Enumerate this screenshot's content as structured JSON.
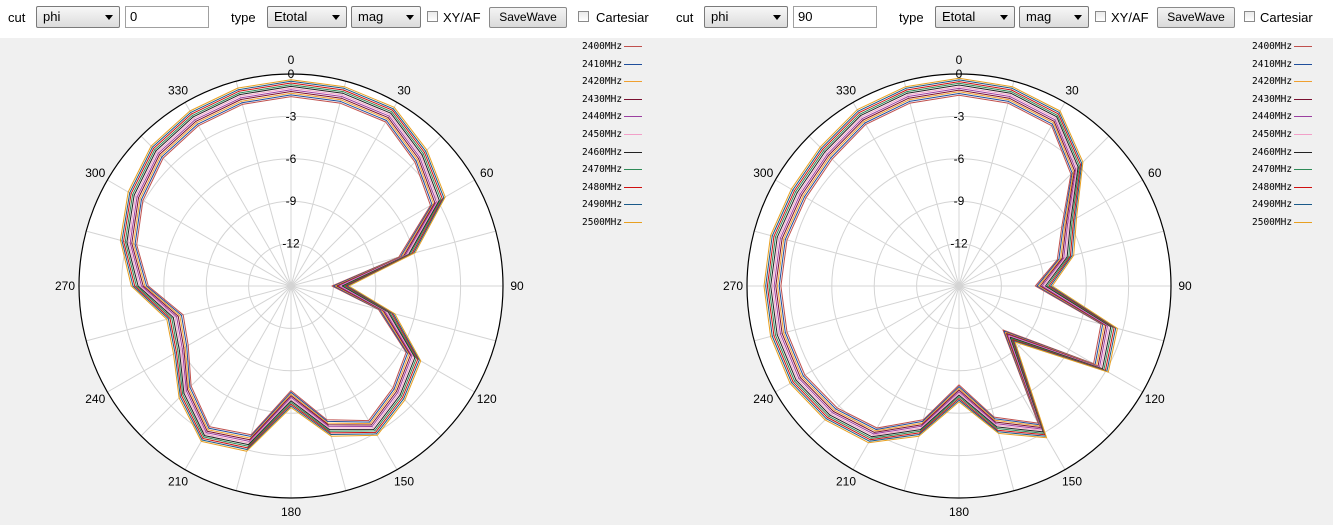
{
  "panels": [
    {
      "cut_label": "cut",
      "cut_value": "phi",
      "cut_angle": "0",
      "type_label": "type",
      "type_value": "Etotal",
      "mag_value": "mag",
      "xyaf_label": "XY/AF",
      "savewave_label": "SaveWave",
      "cartesian_label": "Cartesiar",
      "angle_labels": [
        "0",
        "30",
        "60",
        "90",
        "120",
        "150",
        "180",
        "210",
        "240",
        "270",
        "300",
        "330"
      ],
      "radial_labels": [
        "0",
        "-3",
        "-6",
        "-9",
        "-12"
      ],
      "legend": [
        "2400MHz",
        "2410MHz",
        "2420MHz",
        "2430MHz",
        "2440MHz",
        "2450MHz",
        "2460MHz",
        "2470MHz",
        "2480MHz",
        "2490MHz",
        "2500MHz"
      ]
    },
    {
      "cut_label": "cut",
      "cut_value": "phi",
      "cut_angle": "90",
      "type_label": "type",
      "type_value": "Etotal",
      "mag_value": "mag",
      "xyaf_label": "XY/AF",
      "savewave_label": "SaveWave",
      "cartesian_label": "Cartesiar",
      "angle_labels": [
        "0",
        "30",
        "60",
        "90",
        "120",
        "150",
        "180",
        "210",
        "240",
        "270",
        "300",
        "330"
      ],
      "radial_labels": [
        "0",
        "-3",
        "-6",
        "-9",
        "-12"
      ],
      "legend": [
        "2400MHz",
        "2410MHz",
        "2420MHz",
        "2430MHz",
        "2440MHz",
        "2450MHz",
        "2460MHz",
        "2470MHz",
        "2480MHz",
        "2490MHz",
        "2500MHz"
      ]
    }
  ],
  "series_colors": [
    "#c0504d",
    "#1f4e9c",
    "#f0a030",
    "#7a1030",
    "#9b3fa0",
    "#f2a0c8",
    "#222222",
    "#2e8b57",
    "#d01010",
    "#1a5a8a",
    "#e8a020"
  ],
  "chart_data": [
    {
      "type": "polar-line",
      "cut": "phi = 0",
      "angle_unit": "deg",
      "r_unit": "dB",
      "r_range": [
        -15,
        0
      ],
      "angles": [
        0,
        15,
        30,
        45,
        60,
        75,
        90,
        105,
        120,
        135,
        150,
        165,
        180,
        195,
        210,
        225,
        240,
        255,
        270,
        285,
        300,
        315,
        330,
        345
      ],
      "series": [
        {
          "name": "2400MHz",
          "values": [
            -1.0,
            -1.0,
            -1.0,
            -2.0,
            -3.0,
            -6.5,
            -11.5,
            -8.0,
            -5.0,
            -4.2,
            -3.4,
            -4.6,
            -7.0,
            -3.5,
            -2.9,
            -4.4,
            -6.0,
            -6.5,
            -4.3,
            -3.1,
            -2.3,
            -1.6,
            -1.3,
            -1.1
          ]
        },
        {
          "name": "2410MHz",
          "values": [
            -1.0,
            -1.0,
            -1.0,
            -2.0,
            -3.0,
            -6.5,
            -11.5,
            -8.0,
            -5.0,
            -4.2,
            -3.4,
            -4.6,
            -7.0,
            -3.5,
            -2.9,
            -4.4,
            -6.0,
            -6.5,
            -4.3,
            -3.1,
            -2.3,
            -1.6,
            -1.3,
            -1.1
          ]
        },
        {
          "name": "2420MHz",
          "values": [
            -1.0,
            -1.0,
            -1.0,
            -2.0,
            -3.0,
            -6.5,
            -11.5,
            -8.0,
            -5.0,
            -4.2,
            -3.4,
            -4.6,
            -7.0,
            -3.5,
            -2.9,
            -4.4,
            -6.0,
            -6.5,
            -4.3,
            -3.1,
            -2.3,
            -1.6,
            -1.3,
            -1.1
          ]
        },
        {
          "name": "2430MHz",
          "values": [
            -1.0,
            -1.0,
            -1.0,
            -2.0,
            -3.0,
            -6.5,
            -11.5,
            -8.0,
            -5.0,
            -4.2,
            -3.4,
            -4.6,
            -7.0,
            -3.5,
            -2.9,
            -4.4,
            -6.0,
            -6.5,
            -4.3,
            -3.1,
            -2.3,
            -1.6,
            -1.3,
            -1.1
          ]
        },
        {
          "name": "2440MHz",
          "values": [
            -1.0,
            -1.0,
            -1.0,
            -2.0,
            -3.0,
            -6.5,
            -11.5,
            -8.0,
            -5.0,
            -4.2,
            -3.4,
            -4.6,
            -7.0,
            -3.5,
            -2.9,
            -4.4,
            -6.0,
            -6.5,
            -4.3,
            -3.1,
            -2.3,
            -1.6,
            -1.3,
            -1.1
          ]
        },
        {
          "name": "2450MHz",
          "values": [
            -1.0,
            -1.0,
            -1.0,
            -2.0,
            -3.0,
            -6.5,
            -11.5,
            -8.0,
            -5.0,
            -4.2,
            -3.4,
            -4.6,
            -7.0,
            -3.5,
            -2.9,
            -4.4,
            -6.0,
            -6.5,
            -4.3,
            -3.1,
            -2.3,
            -1.6,
            -1.3,
            -1.1
          ]
        },
        {
          "name": "2460MHz",
          "values": [
            -1.0,
            -1.0,
            -1.0,
            -2.0,
            -3.0,
            -6.5,
            -11.5,
            -8.0,
            -5.0,
            -4.2,
            -3.4,
            -4.6,
            -7.0,
            -3.5,
            -2.9,
            -4.4,
            -6.0,
            -6.5,
            -4.3,
            -3.1,
            -2.3,
            -1.6,
            -1.3,
            -1.1
          ]
        },
        {
          "name": "2470MHz",
          "values": [
            -1.0,
            -1.0,
            -1.0,
            -2.0,
            -3.0,
            -6.5,
            -11.5,
            -8.0,
            -5.0,
            -4.2,
            -3.4,
            -4.6,
            -7.0,
            -3.5,
            -2.9,
            -4.4,
            -6.0,
            -6.5,
            -4.3,
            -3.1,
            -2.3,
            -1.6,
            -1.3,
            -1.1
          ]
        },
        {
          "name": "2480MHz",
          "values": [
            -1.0,
            -1.0,
            -1.0,
            -2.0,
            -3.0,
            -6.5,
            -11.5,
            -8.0,
            -5.0,
            -4.2,
            -3.4,
            -4.6,
            -7.0,
            -3.5,
            -2.9,
            -4.4,
            -6.0,
            -6.5,
            -4.3,
            -3.1,
            -2.3,
            -1.6,
            -1.3,
            -1.1
          ]
        },
        {
          "name": "2490MHz",
          "values": [
            -1.0,
            -1.0,
            -1.0,
            -2.0,
            -3.0,
            -6.5,
            -11.5,
            -8.0,
            -5.0,
            -4.2,
            -3.4,
            -4.6,
            -7.0,
            -3.5,
            -2.9,
            -4.4,
            -6.0,
            -6.5,
            -4.3,
            -3.1,
            -2.3,
            -1.6,
            -1.3,
            -1.1
          ]
        },
        {
          "name": "2500MHz",
          "values": [
            -1.0,
            -1.0,
            -1.0,
            -2.0,
            -3.0,
            -6.5,
            -11.5,
            -8.0,
            -5.0,
            -4.2,
            -3.4,
            -4.6,
            -7.0,
            -3.5,
            -2.9,
            -4.4,
            -6.0,
            -6.5,
            -4.3,
            -3.1,
            -2.3,
            -1.6,
            -1.3,
            -1.1
          ]
        }
      ]
    },
    {
      "type": "polar-line",
      "cut": "phi = 90",
      "angle_unit": "deg",
      "r_unit": "dB",
      "r_range": [
        -15,
        0
      ],
      "angles": [
        0,
        15,
        30,
        45,
        60,
        75,
        90,
        105,
        120,
        135,
        150,
        165,
        180,
        195,
        210,
        225,
        240,
        255,
        270,
        285,
        300,
        315,
        330,
        345
      ],
      "series": [
        {
          "name": "2400MHz",
          "values": [
            -0.9,
            -1.0,
            -1.3,
            -3.2,
            -6.0,
            -7.2,
            -9.0,
            -4.0,
            -3.4,
            -10.0,
            -3.2,
            -4.8,
            -7.4,
            -4.6,
            -2.8,
            -2.2,
            -1.8,
            -1.8,
            -1.8,
            -1.8,
            -1.9,
            -1.7,
            -1.2,
            -1.0
          ]
        },
        {
          "name": "2410MHz",
          "values": [
            -0.9,
            -1.0,
            -1.3,
            -3.2,
            -6.0,
            -7.2,
            -9.0,
            -4.0,
            -3.4,
            -10.0,
            -3.2,
            -4.8,
            -7.4,
            -4.6,
            -2.8,
            -2.2,
            -1.8,
            -1.8,
            -1.8,
            -1.8,
            -1.9,
            -1.7,
            -1.2,
            -1.0
          ]
        },
        {
          "name": "2420MHz",
          "values": [
            -0.9,
            -1.0,
            -1.3,
            -3.2,
            -6.0,
            -7.2,
            -9.0,
            -4.0,
            -3.4,
            -10.0,
            -3.2,
            -4.8,
            -7.4,
            -4.6,
            -2.8,
            -2.2,
            -1.8,
            -1.8,
            -1.8,
            -1.8,
            -1.9,
            -1.7,
            -1.2,
            -1.0
          ]
        },
        {
          "name": "2430MHz",
          "values": [
            -0.9,
            -1.0,
            -1.3,
            -3.2,
            -6.0,
            -7.2,
            -9.0,
            -4.0,
            -3.4,
            -10.0,
            -3.2,
            -4.8,
            -7.4,
            -4.6,
            -2.8,
            -2.2,
            -1.8,
            -1.8,
            -1.8,
            -1.8,
            -1.9,
            -1.7,
            -1.2,
            -1.0
          ]
        },
        {
          "name": "2440MHz",
          "values": [
            -0.9,
            -1.0,
            -1.3,
            -3.2,
            -6.0,
            -7.2,
            -9.0,
            -4.0,
            -3.4,
            -10.0,
            -3.2,
            -4.8,
            -7.4,
            -4.6,
            -2.8,
            -2.2,
            -1.8,
            -1.8,
            -1.8,
            -1.8,
            -1.9,
            -1.7,
            -1.2,
            -1.0
          ]
        },
        {
          "name": "2450MHz",
          "values": [
            -0.9,
            -1.0,
            -1.3,
            -3.2,
            -6.0,
            -7.2,
            -9.0,
            -4.0,
            -3.4,
            -10.0,
            -3.2,
            -4.8,
            -7.4,
            -4.6,
            -2.8,
            -2.2,
            -1.8,
            -1.8,
            -1.8,
            -1.8,
            -1.9,
            -1.7,
            -1.2,
            -1.0
          ]
        },
        {
          "name": "2460MHz",
          "values": [
            -0.9,
            -1.0,
            -1.3,
            -3.2,
            -6.0,
            -7.2,
            -9.0,
            -4.0,
            -3.4,
            -10.0,
            -3.2,
            -4.8,
            -7.4,
            -4.6,
            -2.8,
            -2.2,
            -1.8,
            -1.8,
            -1.8,
            -1.8,
            -1.9,
            -1.7,
            -1.2,
            -1.0
          ]
        },
        {
          "name": "2470MHz",
          "values": [
            -0.9,
            -1.0,
            -1.3,
            -3.2,
            -6.0,
            -7.2,
            -9.0,
            -4.0,
            -3.4,
            -10.0,
            -3.2,
            -4.8,
            -7.4,
            -4.6,
            -2.8,
            -2.2,
            -1.8,
            -1.8,
            -1.8,
            -1.8,
            -1.9,
            -1.7,
            -1.2,
            -1.0
          ]
        },
        {
          "name": "2480MHz",
          "values": [
            -0.9,
            -1.0,
            -1.3,
            -3.2,
            -6.0,
            -7.2,
            -9.0,
            -4.0,
            -3.4,
            -10.0,
            -3.2,
            -4.8,
            -7.4,
            -4.6,
            -2.8,
            -2.2,
            -1.8,
            -1.8,
            -1.8,
            -1.8,
            -1.9,
            -1.7,
            -1.2,
            -1.0
          ]
        },
        {
          "name": "2490MHz",
          "values": [
            -0.9,
            -1.0,
            -1.3,
            -3.2,
            -6.0,
            -7.2,
            -9.0,
            -4.0,
            -3.4,
            -10.0,
            -3.2,
            -4.8,
            -7.4,
            -4.6,
            -2.8,
            -2.2,
            -1.8,
            -1.8,
            -1.8,
            -1.8,
            -1.9,
            -1.7,
            -1.2,
            -1.0
          ]
        },
        {
          "name": "2500MHz",
          "values": [
            -0.9,
            -1.0,
            -1.3,
            -3.2,
            -6.0,
            -7.2,
            -9.0,
            -4.0,
            -3.4,
            -10.0,
            -3.2,
            -4.8,
            -7.4,
            -4.6,
            -2.8,
            -2.2,
            -1.8,
            -1.8,
            -1.8,
            -1.8,
            -1.9,
            -1.7,
            -1.2,
            -1.0
          ]
        }
      ]
    }
  ]
}
